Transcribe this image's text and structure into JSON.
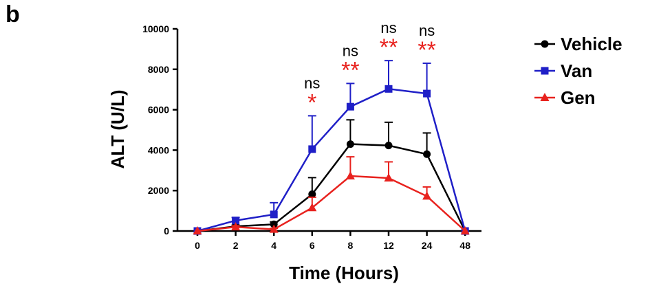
{
  "panel_label": "b",
  "colors": {
    "Vehicle": "#000000",
    "Van": "#1f1fc7",
    "Gen": "#e8221e",
    "axis": "#000000",
    "stars": "#e8221e"
  },
  "chart_data": {
    "type": "line",
    "title": "",
    "xlabel": "Time (Hours)",
    "ylabel": "ALT (U/L)",
    "categories": [
      "0",
      "2",
      "4",
      "6",
      "8",
      "12",
      "24",
      "48"
    ],
    "ylim": [
      0,
      10000
    ],
    "yticks": [
      0,
      2000,
      4000,
      6000,
      8000,
      10000
    ],
    "grid": false,
    "legend_position": "right",
    "series": [
      {
        "name": "Vehicle",
        "marker": "circle",
        "values": [
          0,
          230,
          330,
          1820,
          4300,
          4230,
          3800,
          0
        ],
        "error": [
          0,
          60,
          120,
          820,
          1200,
          1150,
          1050,
          0
        ]
      },
      {
        "name": "Van",
        "marker": "square",
        "values": [
          0,
          520,
          820,
          4050,
          6150,
          7030,
          6800,
          0
        ],
        "error": [
          0,
          150,
          580,
          1650,
          1150,
          1400,
          1500,
          0
        ]
      },
      {
        "name": "Gen",
        "marker": "triangle",
        "values": [
          0,
          200,
          80,
          1150,
          2720,
          2620,
          1720,
          0
        ],
        "error": [
          0,
          60,
          50,
          520,
          950,
          800,
          460,
          0
        ]
      }
    ],
    "annotations": [
      {
        "category": "6",
        "ns": "ns",
        "stars": "*"
      },
      {
        "category": "8",
        "ns": "ns",
        "stars": "**"
      },
      {
        "category": "12",
        "ns": "ns",
        "stars": "**"
      },
      {
        "category": "24",
        "ns": "ns",
        "stars": "**"
      }
    ]
  }
}
